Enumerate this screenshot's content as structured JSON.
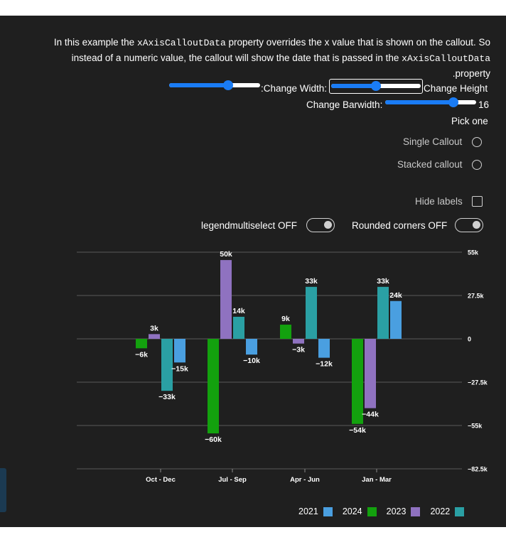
{
  "description": {
    "part1": "In this example the ",
    "code1": "xAxisCalloutData",
    "part2": " property overrides the x value that is shown on the callout. So instead of a numeric value, the callout will show the date that is passed in the ",
    "code2": "xAxisCalloutData",
    "part3": " .property"
  },
  "controls": {
    "change_width_label": ":Change Width:",
    "change_height_label": "Change Height",
    "change_barwidth_label": "Change Barwidth:",
    "barwidth_value": "16",
    "width_slider_value": 0.65,
    "height_slider_value": 0.5,
    "barwidth_slider_value": 0.75,
    "pick_one_label": "Pick one",
    "radio_options": [
      "Single Callout",
      "Stacked callout"
    ],
    "hide_labels_label": "Hide labels",
    "legend_multiselect_label": "legendmultiselect OFF",
    "rounded_corners_label": "Rounded corners OFF"
  },
  "colors": {
    "y2021": "#4a9fe0",
    "y2024": "#13a10e",
    "y2023": "#8f72c0",
    "y2022": "#2aa0a4",
    "accent": "#1a7cf5"
  },
  "chart_data": {
    "type": "bar",
    "categories": [
      "Oct - Dec",
      "Jul - Sep",
      "Apr - Jun",
      "Jan - Mar"
    ],
    "series": [
      {
        "name": "2024",
        "color": "#13a10e",
        "values": [
          -6,
          -60,
          9,
          -54
        ]
      },
      {
        "name": "2023",
        "color": "#8f72c0",
        "values": [
          3,
          50,
          -3,
          -44
        ]
      },
      {
        "name": "2022",
        "color": "#2aa0a4",
        "values": [
          -33,
          14,
          33,
          33
        ]
      },
      {
        "name": "2021",
        "color": "#4a9fe0",
        "values": [
          -15,
          -10,
          -12,
          24
        ]
      }
    ],
    "data_labels": [
      [
        "−6k",
        "3k",
        "−33k",
        "−15k"
      ],
      [
        "−60k",
        "50k",
        "14k",
        "−10k"
      ],
      [
        "9k",
        "−3k",
        "33k",
        "−12k"
      ],
      [
        "−54k",
        "−44k",
        "33k",
        "24k"
      ]
    ],
    "y_ticks": [
      55,
      27.5,
      0,
      -27.5,
      -55,
      -82.5
    ],
    "y_tick_labels": [
      "55k",
      "27.5k",
      "0",
      "−27.5k",
      "−55k",
      "−82.5k"
    ],
    "ylim": [
      -82.5,
      55
    ],
    "legend": [
      {
        "name": "2021",
        "color": "#4a9fe0"
      },
      {
        "name": "2024",
        "color": "#13a10e"
      },
      {
        "name": "2023",
        "color": "#8f72c0"
      },
      {
        "name": "2022",
        "color": "#2aa0a4"
      }
    ],
    "legend_position": "bottom-right",
    "grid": true
  }
}
